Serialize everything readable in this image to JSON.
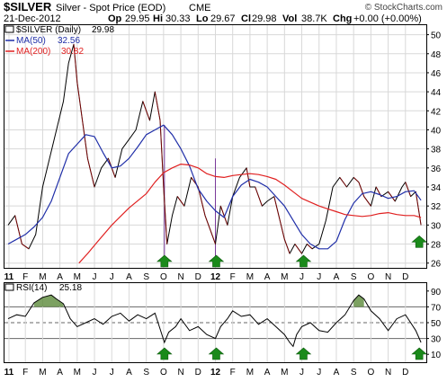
{
  "header": {
    "symbol": "$SILVER",
    "description": "Silver - Spot Price (EOD)",
    "exchange": "CME",
    "watermark": "© StockCharts.com",
    "date": "21-Dec-2012",
    "op_label": "Op",
    "op": "29.95",
    "hi_label": "Hi",
    "hi": "30.33",
    "lo_label": "Lo",
    "lo": "29.67",
    "cl_label": "Cl",
    "cl": "29.98",
    "vol_label": "Vol",
    "vol": "38.7K",
    "chg_label": "Chg",
    "chg": "+0.00 (+0.00%)"
  },
  "colors": {
    "price": "#000000",
    "price_down": "#cc0000",
    "ma50": "#1f2ea8",
    "ma200": "#e02020",
    "rsi": "#000000",
    "rsi_fill": "#5b8a3a",
    "arrow": "#1a8a1a",
    "grid": "#d8d8d8",
    "vline": "#9a9aaa"
  },
  "chart_data": [
    {
      "type": "line",
      "title": "$SILVER (Daily) 29.98",
      "legend": [
        {
          "name": "$SILVER (Daily)",
          "value": "29.98"
        },
        {
          "name": "MA(50)",
          "value": "32.56"
        },
        {
          "name": "MA(200)",
          "value": "30.82"
        }
      ],
      "legend_position": "top-left",
      "y_axis_side": "right",
      "ylim": [
        25.5,
        51
      ],
      "yticks": [
        26,
        28,
        30,
        32,
        34,
        36,
        38,
        40,
        42,
        44,
        46,
        48,
        50
      ],
      "x_range": [
        0,
        24
      ],
      "x_labels": [
        {
          "x": 0.05,
          "label": "11"
        },
        {
          "x": 1,
          "label": "F"
        },
        {
          "x": 2,
          "label": "M"
        },
        {
          "x": 3,
          "label": "A"
        },
        {
          "x": 4,
          "label": "M"
        },
        {
          "x": 5,
          "label": "J"
        },
        {
          "x": 6,
          "label": "J"
        },
        {
          "x": 7,
          "label": "A"
        },
        {
          "x": 8,
          "label": "S"
        },
        {
          "x": 9,
          "label": "O"
        },
        {
          "x": 10,
          "label": "N"
        },
        {
          "x": 11,
          "label": "D"
        },
        {
          "x": 12,
          "label": "12"
        },
        {
          "x": 13,
          "label": "F"
        },
        {
          "x": 14,
          "label": "M"
        },
        {
          "x": 15,
          "label": "A"
        },
        {
          "x": 16,
          "label": "M"
        },
        {
          "x": 17,
          "label": "J"
        },
        {
          "x": 18,
          "label": "J"
        },
        {
          "x": 19,
          "label": "A"
        },
        {
          "x": 20,
          "label": "S"
        },
        {
          "x": 21,
          "label": "O"
        },
        {
          "x": 22,
          "label": "N"
        },
        {
          "x": 23,
          "label": "D"
        }
      ],
      "series": [
        {
          "name": "$SILVER (Daily)",
          "x": [
            0,
            0.4,
            0.8,
            1.2,
            1.6,
            2,
            2.4,
            2.8,
            3.2,
            3.5,
            3.8,
            4.0,
            4.3,
            4.6,
            5,
            5.4,
            5.8,
            6.2,
            6.6,
            7,
            7.4,
            7.8,
            8.2,
            8.5,
            8.8,
            9.0,
            9.2,
            9.5,
            9.8,
            10.2,
            10.6,
            11,
            11.4,
            11.8,
            12,
            12.3,
            12.7,
            13,
            13.4,
            13.8,
            14,
            14.3,
            14.7,
            15,
            15.4,
            15.8,
            16,
            16.3,
            16.6,
            17,
            17.3,
            17.6,
            18,
            18.4,
            18.8,
            19.2,
            19.6,
            20,
            20.3,
            20.6,
            21,
            21.3,
            21.6,
            22,
            22.4,
            22.8,
            23,
            23.3,
            23.6,
            23.9
          ],
          "values": [
            30,
            31,
            28,
            27.5,
            29,
            34,
            37,
            40,
            43,
            47,
            49,
            45,
            41,
            37,
            34,
            36,
            37,
            35,
            38,
            39,
            40,
            43,
            41,
            44,
            41,
            34,
            28,
            31,
            33,
            32,
            35,
            34,
            31,
            29,
            28,
            32,
            30,
            33,
            35,
            36,
            34,
            34,
            32,
            32.5,
            33,
            30,
            28.5,
            27,
            28,
            27,
            28,
            27.5,
            28,
            30.5,
            34,
            35,
            34,
            35,
            34.5,
            33,
            32,
            34,
            33,
            33.5,
            32.5,
            34,
            34.5,
            33,
            33.5,
            30
          ]
        },
        {
          "name": "MA(50)",
          "x": [
            0,
            0.5,
            1,
            1.5,
            2,
            2.5,
            3,
            3.5,
            4,
            4.5,
            5,
            5.5,
            6,
            6.5,
            7,
            7.5,
            8,
            8.5,
            9,
            9.5,
            10,
            10.5,
            11,
            11.5,
            12,
            12.5,
            13,
            13.5,
            14,
            14.5,
            15,
            15.5,
            16,
            16.5,
            17,
            17.5,
            18,
            18.5,
            19,
            19.5,
            20,
            20.5,
            21,
            21.5,
            22,
            22.5,
            23,
            23.5,
            23.9
          ],
          "values": [
            28,
            28.5,
            29,
            29.8,
            30.8,
            32.5,
            35,
            37.5,
            38.5,
            39.5,
            39.3,
            37.6,
            36,
            36.2,
            37,
            38.2,
            39.5,
            40,
            40.5,
            39.5,
            38,
            36.2,
            33.8,
            32.5,
            31.5,
            30.8,
            33,
            34.2,
            34.8,
            34.5,
            34,
            33,
            32,
            30.5,
            29,
            28,
            27.5,
            27.5,
            28.3,
            30.6,
            32.3,
            33.3,
            33.5,
            33.2,
            32.8,
            33,
            33.5,
            33.6,
            32.6
          ]
        },
        {
          "name": "MA(200)",
          "x": [
            4.1,
            4.6,
            5.2,
            6,
            7,
            8,
            8.5,
            9,
            9.5,
            10,
            10.5,
            11,
            11.5,
            12,
            12.5,
            13,
            13.5,
            14,
            14.5,
            15,
            15.5,
            16,
            16.5,
            17,
            17.5,
            18,
            18.5,
            19,
            19.5,
            20,
            20.5,
            21,
            21.5,
            22,
            22.5,
            23,
            23.5,
            23.9
          ],
          "values": [
            26,
            27,
            28.3,
            30,
            31.8,
            33.3,
            34.5,
            35.5,
            36,
            36.4,
            36.3,
            36,
            35.4,
            35.1,
            35,
            35.2,
            35.3,
            35.4,
            35.3,
            35.1,
            34.8,
            34.2,
            33.5,
            32.8,
            32.4,
            32,
            31.7,
            31.4,
            31.1,
            31,
            30.9,
            31,
            31.2,
            31.3,
            31.1,
            31,
            31,
            30.8
          ]
        }
      ],
      "annotations": [
        {
          "type": "vertical-line",
          "x": 9.05,
          "y_from": 26,
          "y_to": 40.5
        },
        {
          "type": "vertical-line",
          "x": 12,
          "y_from": 26,
          "y_to": 37
        },
        {
          "type": "up-arrow",
          "x": 9.05
        },
        {
          "type": "up-arrow",
          "x": 12.05
        },
        {
          "type": "up-arrow",
          "x": 17.1
        },
        {
          "type": "up-arrow",
          "x": 23.8,
          "y": 28.3
        }
      ]
    },
    {
      "type": "line",
      "title": "RSI(14) 25.18",
      "legend": [
        {
          "name": "RSI(14)",
          "value": "25.18"
        }
      ],
      "legend_position": "top-left",
      "ylim": [
        0,
        100
      ],
      "yticks": [
        10,
        30,
        50,
        70,
        90
      ],
      "reference_lines": [
        30,
        50,
        70
      ],
      "x_labels": [
        {
          "x": 0.05,
          "label": "11"
        },
        {
          "x": 1,
          "label": "F"
        },
        {
          "x": 2,
          "label": "M"
        },
        {
          "x": 3,
          "label": "A"
        },
        {
          "x": 4,
          "label": "M"
        },
        {
          "x": 5,
          "label": "J"
        },
        {
          "x": 6,
          "label": "J"
        },
        {
          "x": 7,
          "label": "A"
        },
        {
          "x": 8,
          "label": "S"
        },
        {
          "x": 9,
          "label": "O"
        },
        {
          "x": 10,
          "label": "N"
        },
        {
          "x": 11,
          "label": "D"
        },
        {
          "x": 12,
          "label": "12"
        },
        {
          "x": 13,
          "label": "F"
        },
        {
          "x": 14,
          "label": "M"
        },
        {
          "x": 15,
          "label": "A"
        },
        {
          "x": 16,
          "label": "M"
        },
        {
          "x": 17,
          "label": "J"
        },
        {
          "x": 18,
          "label": "J"
        },
        {
          "x": 19,
          "label": "A"
        },
        {
          "x": 20,
          "label": "S"
        },
        {
          "x": 21,
          "label": "O"
        },
        {
          "x": 22,
          "label": "N"
        },
        {
          "x": 23,
          "label": "D"
        }
      ],
      "series": [
        {
          "name": "RSI(14)",
          "x": [
            0,
            0.5,
            1,
            1.5,
            2,
            2.5,
            2.8,
            3.2,
            3.6,
            4,
            4.5,
            5,
            5.5,
            6,
            6.5,
            7,
            7.5,
            8,
            8.5,
            8.8,
            9.05,
            9.3,
            9.7,
            10,
            10.5,
            11,
            11.5,
            12,
            12.3,
            12.7,
            13,
            13.5,
            14,
            14.5,
            15,
            15.5,
            16,
            16.3,
            16.5,
            16.7,
            17,
            17.5,
            18,
            18.5,
            19,
            19.5,
            20,
            20.3,
            20.6,
            21,
            21.5,
            22,
            22.5,
            23,
            23.3,
            23.6,
            23.9
          ],
          "values": [
            55,
            60,
            58,
            75,
            82,
            85,
            80,
            74,
            55,
            45,
            50,
            55,
            48,
            58,
            62,
            52,
            60,
            55,
            62,
            42,
            25,
            38,
            45,
            55,
            40,
            45,
            35,
            30,
            45,
            55,
            65,
            58,
            60,
            48,
            55,
            45,
            35,
            25,
            20,
            35,
            45,
            50,
            40,
            38,
            50,
            60,
            78,
            85,
            80,
            65,
            55,
            40,
            55,
            60,
            50,
            40,
            25
          ]
        }
      ],
      "annotations": [
        {
          "type": "up-arrow",
          "x": 9.05
        },
        {
          "type": "up-arrow",
          "x": 12.05
        },
        {
          "type": "up-arrow",
          "x": 17.1
        },
        {
          "type": "up-arrow",
          "x": 23.8
        }
      ]
    }
  ]
}
